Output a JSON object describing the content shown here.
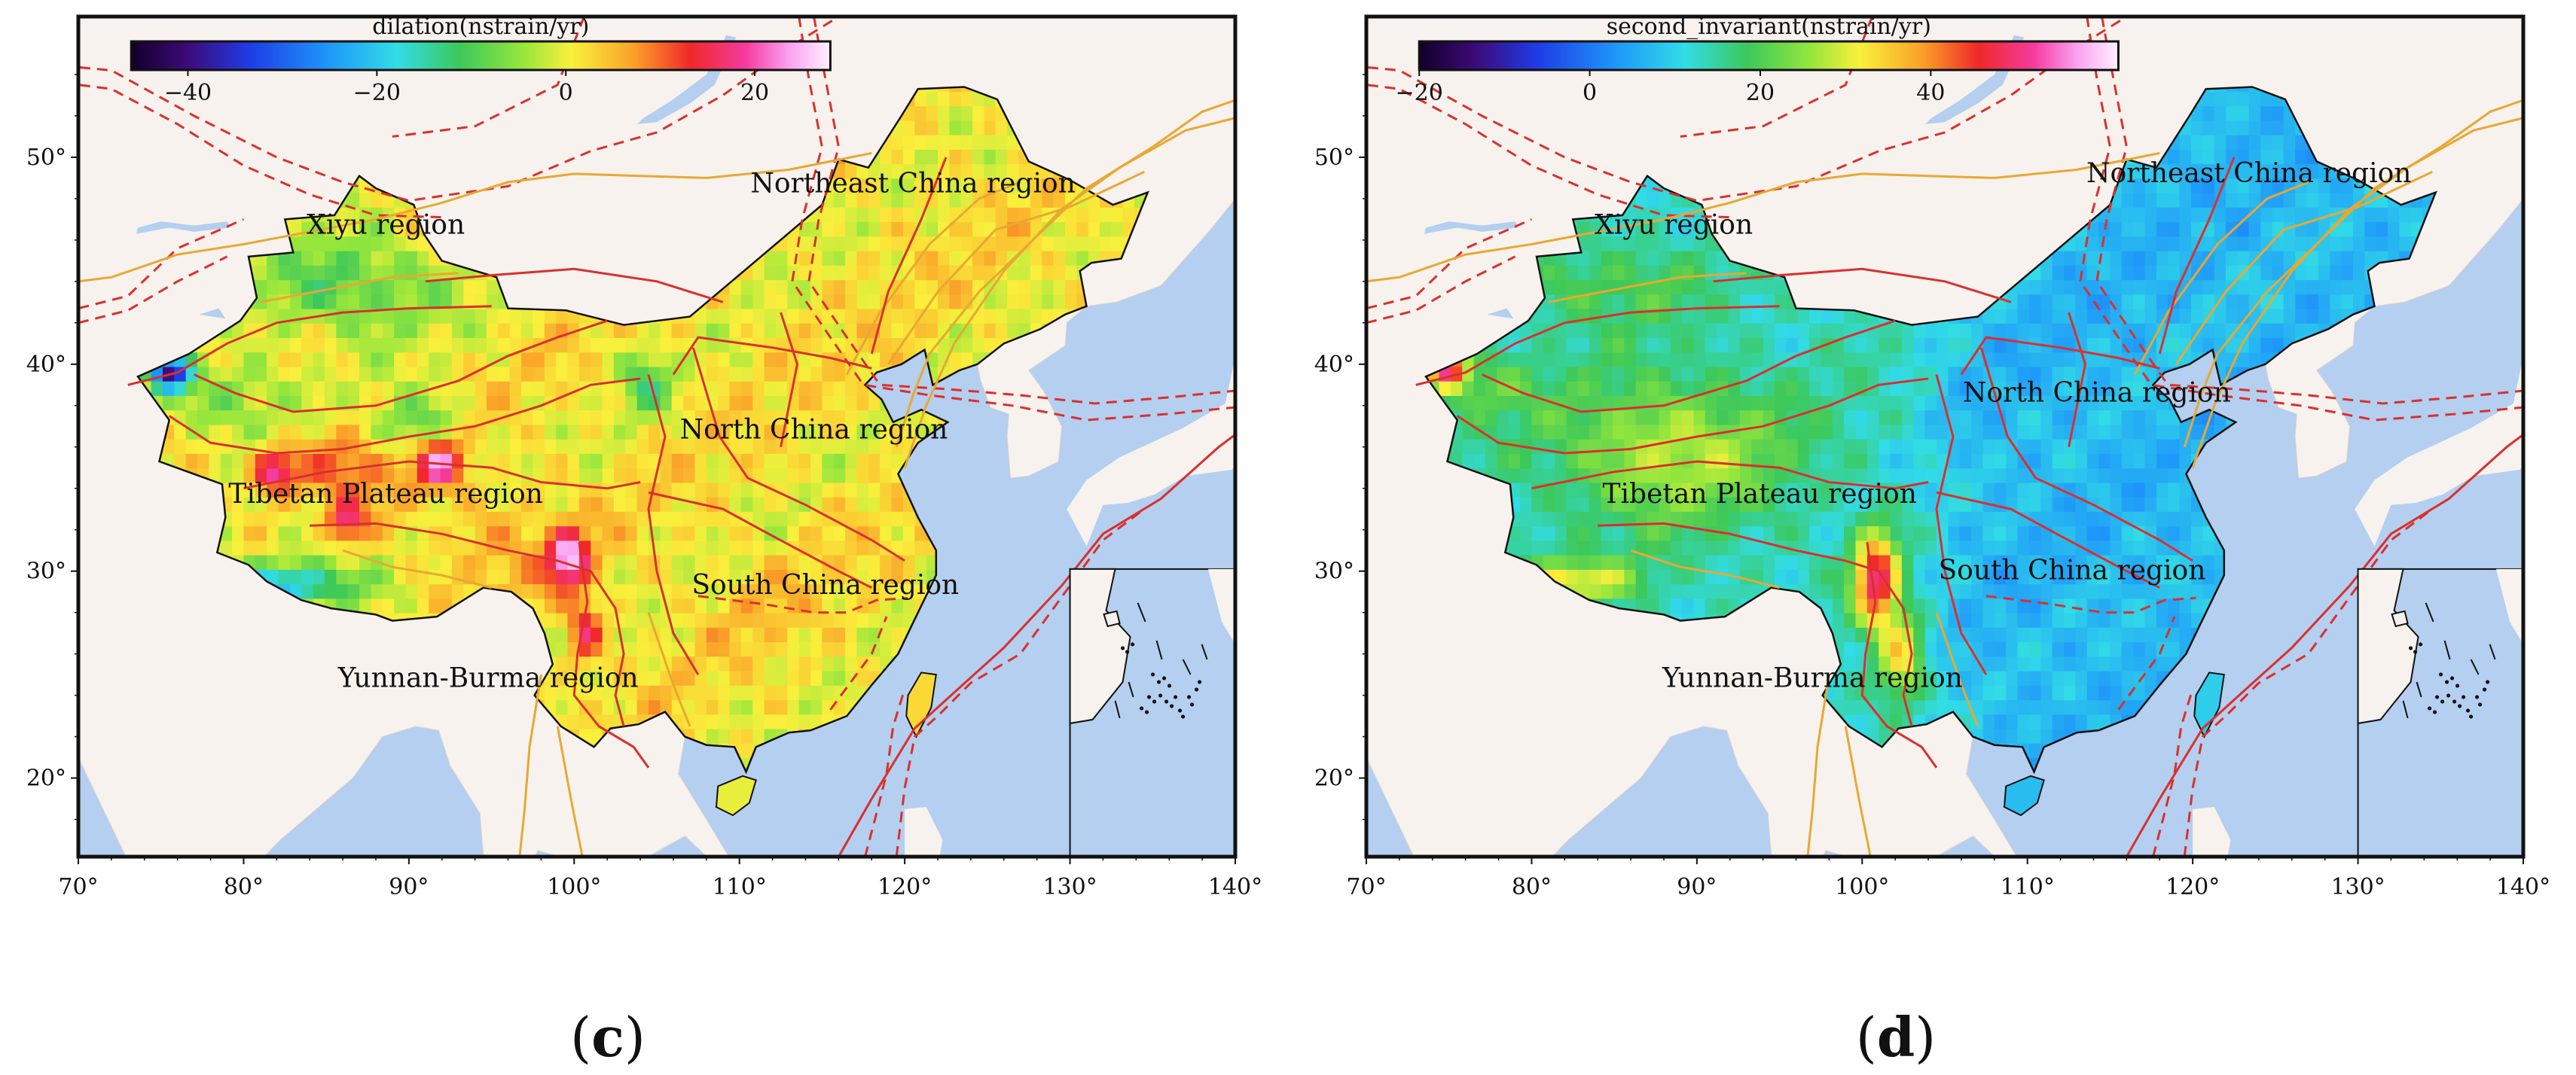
{
  "panels": [
    {
      "id": "c",
      "colorbar": {
        "title": "dilation(nstrain/yr)",
        "ticks": [
          "−40",
          "−20",
          "0",
          "20"
        ],
        "range": [
          -46,
          28
        ],
        "tick_values": [
          -40,
          -20,
          0,
          20
        ],
        "colormap": "dilation"
      },
      "regions": [
        {
          "name": "Xiyu region",
          "lon": 88.6,
          "lat": 46.3
        },
        {
          "name": "Northeast China region",
          "lon": 120.5,
          "lat": 48.3
        },
        {
          "name": "North China region",
          "lon": 114.5,
          "lat": 36.4
        },
        {
          "name": "Tibetan Plateau region",
          "lon": 88.6,
          "lat": 33.3
        },
        {
          "name": "South China region",
          "lon": 115.2,
          "lat": 28.9
        },
        {
          "name": "Yunnan-Burma region",
          "lon": 94.8,
          "lat": 24.4
        }
      ],
      "caption_letter": "c"
    },
    {
      "id": "d",
      "colorbar": {
        "title": "second_invariant(nstrain/yr)",
        "ticks": [
          "−20",
          "0",
          "20",
          "40"
        ],
        "range": [
          -20,
          62
        ],
        "tick_values": [
          -20,
          0,
          20,
          40
        ],
        "colormap": "invariant"
      },
      "regions": [
        {
          "name": "Xiyu region",
          "lon": 88.6,
          "lat": 46.3
        },
        {
          "name": "Northeast China region",
          "lon": 123.4,
          "lat": 48.8
        },
        {
          "name": "North China region",
          "lon": 114.2,
          "lat": 38.2
        },
        {
          "name": "Tibetan Plateau region",
          "lon": 93.8,
          "lat": 33.3
        },
        {
          "name": "South China region",
          "lon": 112.7,
          "lat": 29.6
        },
        {
          "name": "Yunnan-Burma region",
          "lon": 97.0,
          "lat": 24.4
        }
      ],
      "caption_letter": "d"
    }
  ],
  "axes": {
    "lon_ticks": [
      "70°",
      "80°",
      "90°",
      "100°",
      "110°",
      "120°",
      "130°",
      "140°"
    ],
    "lat_ticks": [
      "20°",
      "30°",
      "40°",
      "50°"
    ],
    "lon_range": [
      70,
      140
    ],
    "lat_range": [
      16.2,
      56.8
    ]
  },
  "colors": {
    "ocean": "#b4cfef",
    "land": "#f7f2ee",
    "fault_red": "#d9302e",
    "fault_orange": "#e8a832",
    "plate_dash": "#d9302e"
  }
}
